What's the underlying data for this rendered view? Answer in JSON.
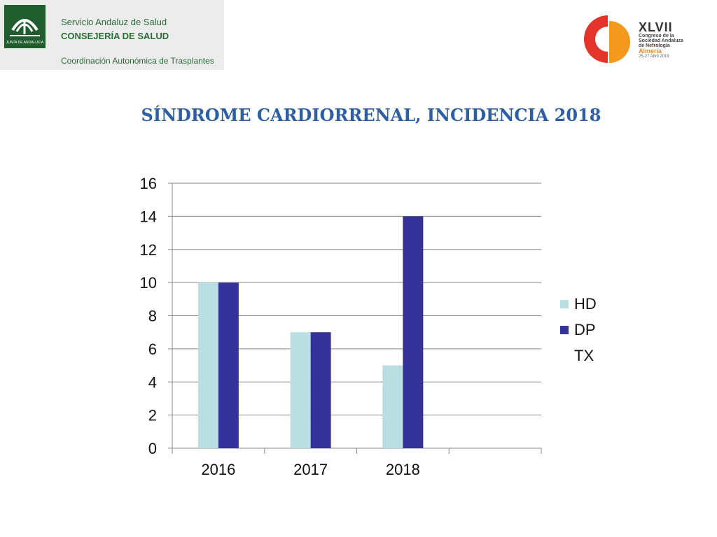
{
  "header": {
    "org_line1": "Servicio Andaluz de Salud",
    "org_line2": "CONSEJERÍA DE SALUD",
    "org_line3": "Coordinación Autonómica de Trasplantes",
    "junta_logo_text": "JUNTA DE ANDALUCIA",
    "congress_numeral": "XLVII",
    "congress_line1": "Congreso de la",
    "congress_line2": "Sociedad Andaluza",
    "congress_line3": "de Nefrología",
    "congress_city": "Almería",
    "congress_dates": "25-27 Abril 2019"
  },
  "title": "SÍNDROME CARDIORRENAL, INCIDENCIA 2018",
  "colors": {
    "title": "#2e5fa5",
    "hd": "#b9dfe2",
    "dp": "#353399",
    "gridline": "#888888",
    "logo_red": "#e4342c",
    "logo_orange": "#f39a1e"
  },
  "chart_data": {
    "type": "bar",
    "categories": [
      "2016",
      "2017",
      "2018",
      ""
    ],
    "series": [
      {
        "name": "HD",
        "values": [
          10,
          7,
          5,
          null
        ],
        "color": "#b9dfe2"
      },
      {
        "name": "DP",
        "values": [
          10,
          7,
          14,
          null
        ],
        "color": "#353399"
      },
      {
        "name": "TX",
        "values": [
          null,
          null,
          null,
          null
        ],
        "color": "#ffffff"
      }
    ],
    "yticks": [
      "0",
      "2",
      "4",
      "6",
      "8",
      "10",
      "12",
      "14",
      "16"
    ],
    "ylim": [
      0,
      16
    ],
    "grid": true,
    "legend": "right"
  }
}
